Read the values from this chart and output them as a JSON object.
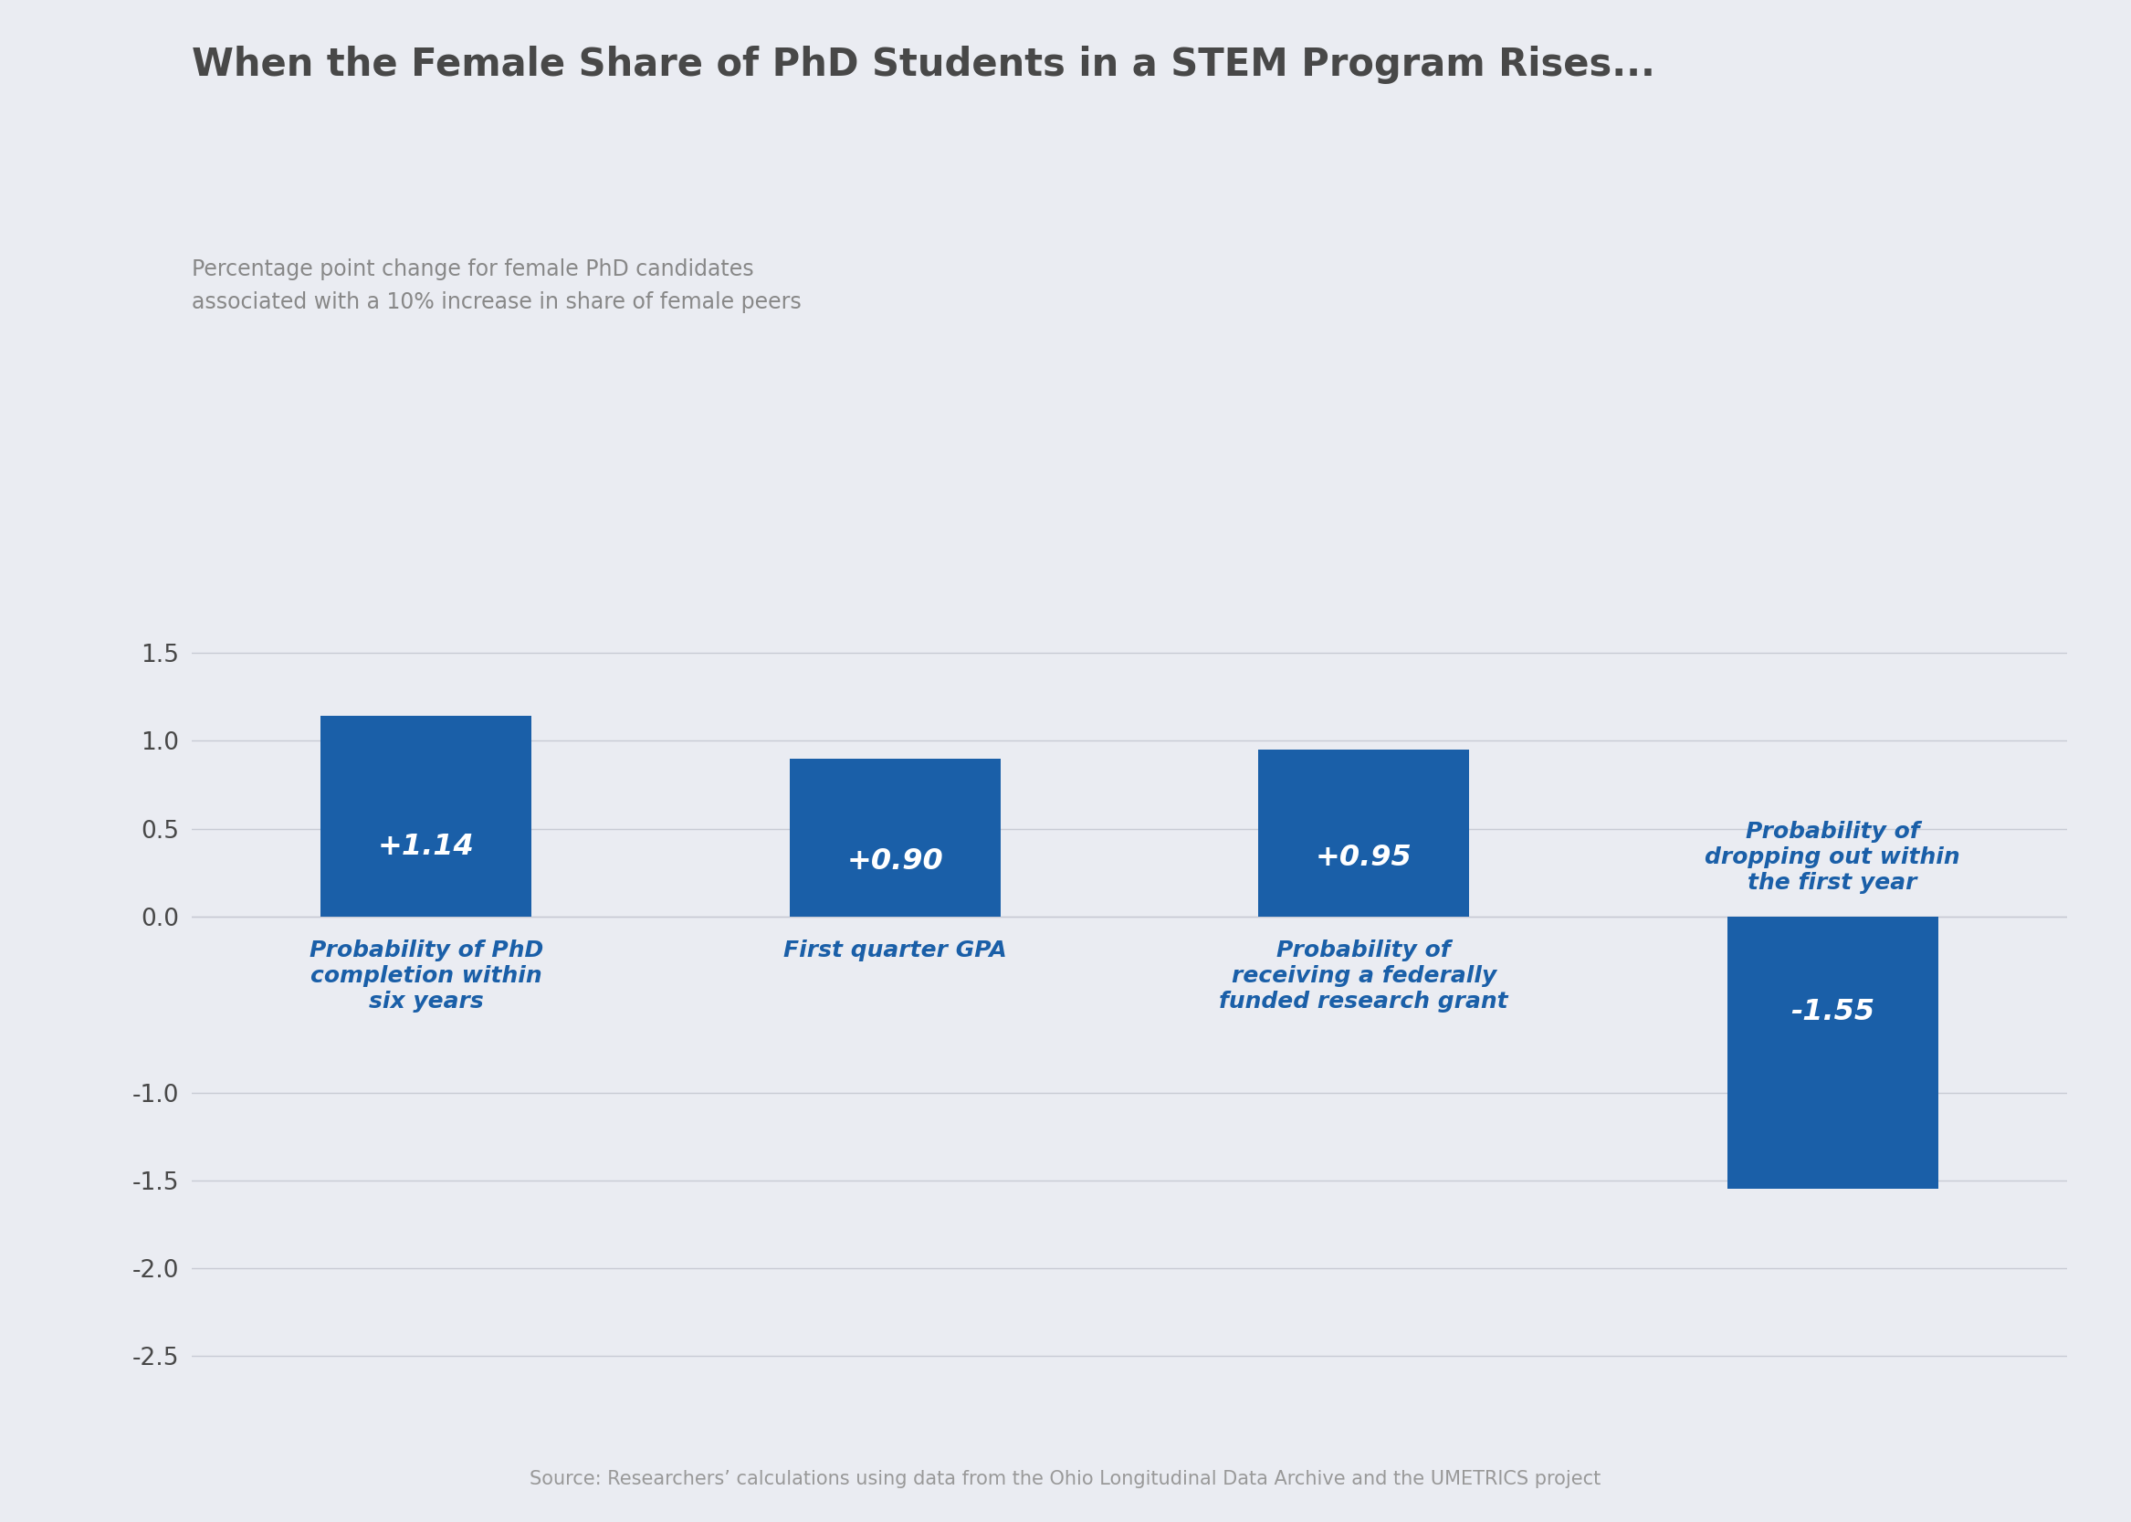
{
  "title": "When the Female Share of PhD Students in a STEM Program Rises...",
  "subtitle_line1": "Percentage point change for female PhD candidates",
  "subtitle_line2": "associated with a 10% increase in share of female peers",
  "source": "Source: Researchers’ calculations using data from the Ohio Longitudinal Data Archive and the UMETRICS project",
  "categories": [
    "Probability of PhD\ncompletion within\nsix years",
    "First quarter GPA",
    "Probability of\nreceiving a federally\nfunded research grant",
    "Probability of\ndropping out within\nthe first year"
  ],
  "values": [
    1.14,
    0.9,
    0.95,
    -1.55
  ],
  "bar_labels": [
    "+1.14",
    "+0.90",
    "+0.95",
    "-1.55"
  ],
  "bar_color": "#1a5fa8",
  "background_color": "#eaecf2",
  "plot_bg_color": "#eaecf2",
  "title_color": "#484848",
  "subtitle_color": "#888888",
  "source_color": "#999999",
  "bar_label_color": "#ffffff",
  "category_label_color": "#1a5fa8",
  "gridline_color": "#c8cbd4",
  "tick_color": "#484848",
  "ylim": [
    -2.75,
    1.75
  ],
  "yticks": [
    -2.5,
    -2.0,
    -1.5,
    -1.0,
    0.0,
    0.5,
    1.0,
    1.5
  ],
  "title_fontsize": 30,
  "subtitle_fontsize": 17,
  "source_fontsize": 15,
  "bar_label_fontsize": 23,
  "category_label_fontsize": 18,
  "tick_fontsize": 19,
  "bar_width": 0.45
}
